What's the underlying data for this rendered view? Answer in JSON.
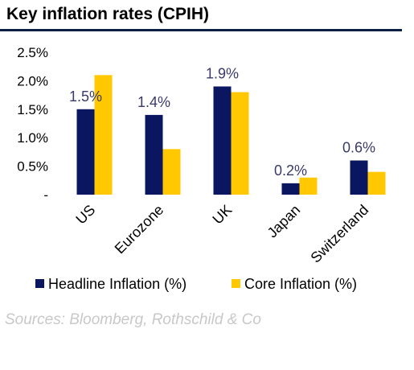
{
  "header": {
    "title": "Key inflation rates (CPIH)"
  },
  "source": "Sources: Bloomberg, Rothschild & Co",
  "colors": {
    "headline": "#0a1760",
    "core": "#ffc800",
    "rule": "#0a1f44",
    "axis_text": "#000000",
    "label_text": "#3a3a6a"
  },
  "chart_data": {
    "type": "bar",
    "categories": [
      "US",
      "Eurozone",
      "UK",
      "Japan",
      "Switzerland"
    ],
    "series": [
      {
        "name": "Headline Inflation (%)",
        "values": [
          1.5,
          1.4,
          1.9,
          0.2,
          0.6
        ]
      },
      {
        "name": "Core Inflation (%)",
        "values": [
          2.1,
          0.8,
          1.8,
          0.3,
          0.4
        ]
      }
    ],
    "data_labels": [
      "1.5%",
      "1.4%",
      "1.9%",
      "0.2%",
      "0.6%"
    ],
    "yticks": [
      {
        "value": 0,
        "label": "-"
      },
      {
        "value": 0.5,
        "label": "0.5%"
      },
      {
        "value": 1.0,
        "label": "1.0%"
      },
      {
        "value": 1.5,
        "label": "1.5%"
      },
      {
        "value": 2.0,
        "label": "2.0%"
      },
      {
        "value": 2.5,
        "label": "2.5%"
      }
    ],
    "ylim": [
      0,
      2.5
    ],
    "grid": false,
    "legend_position": "bottom"
  }
}
